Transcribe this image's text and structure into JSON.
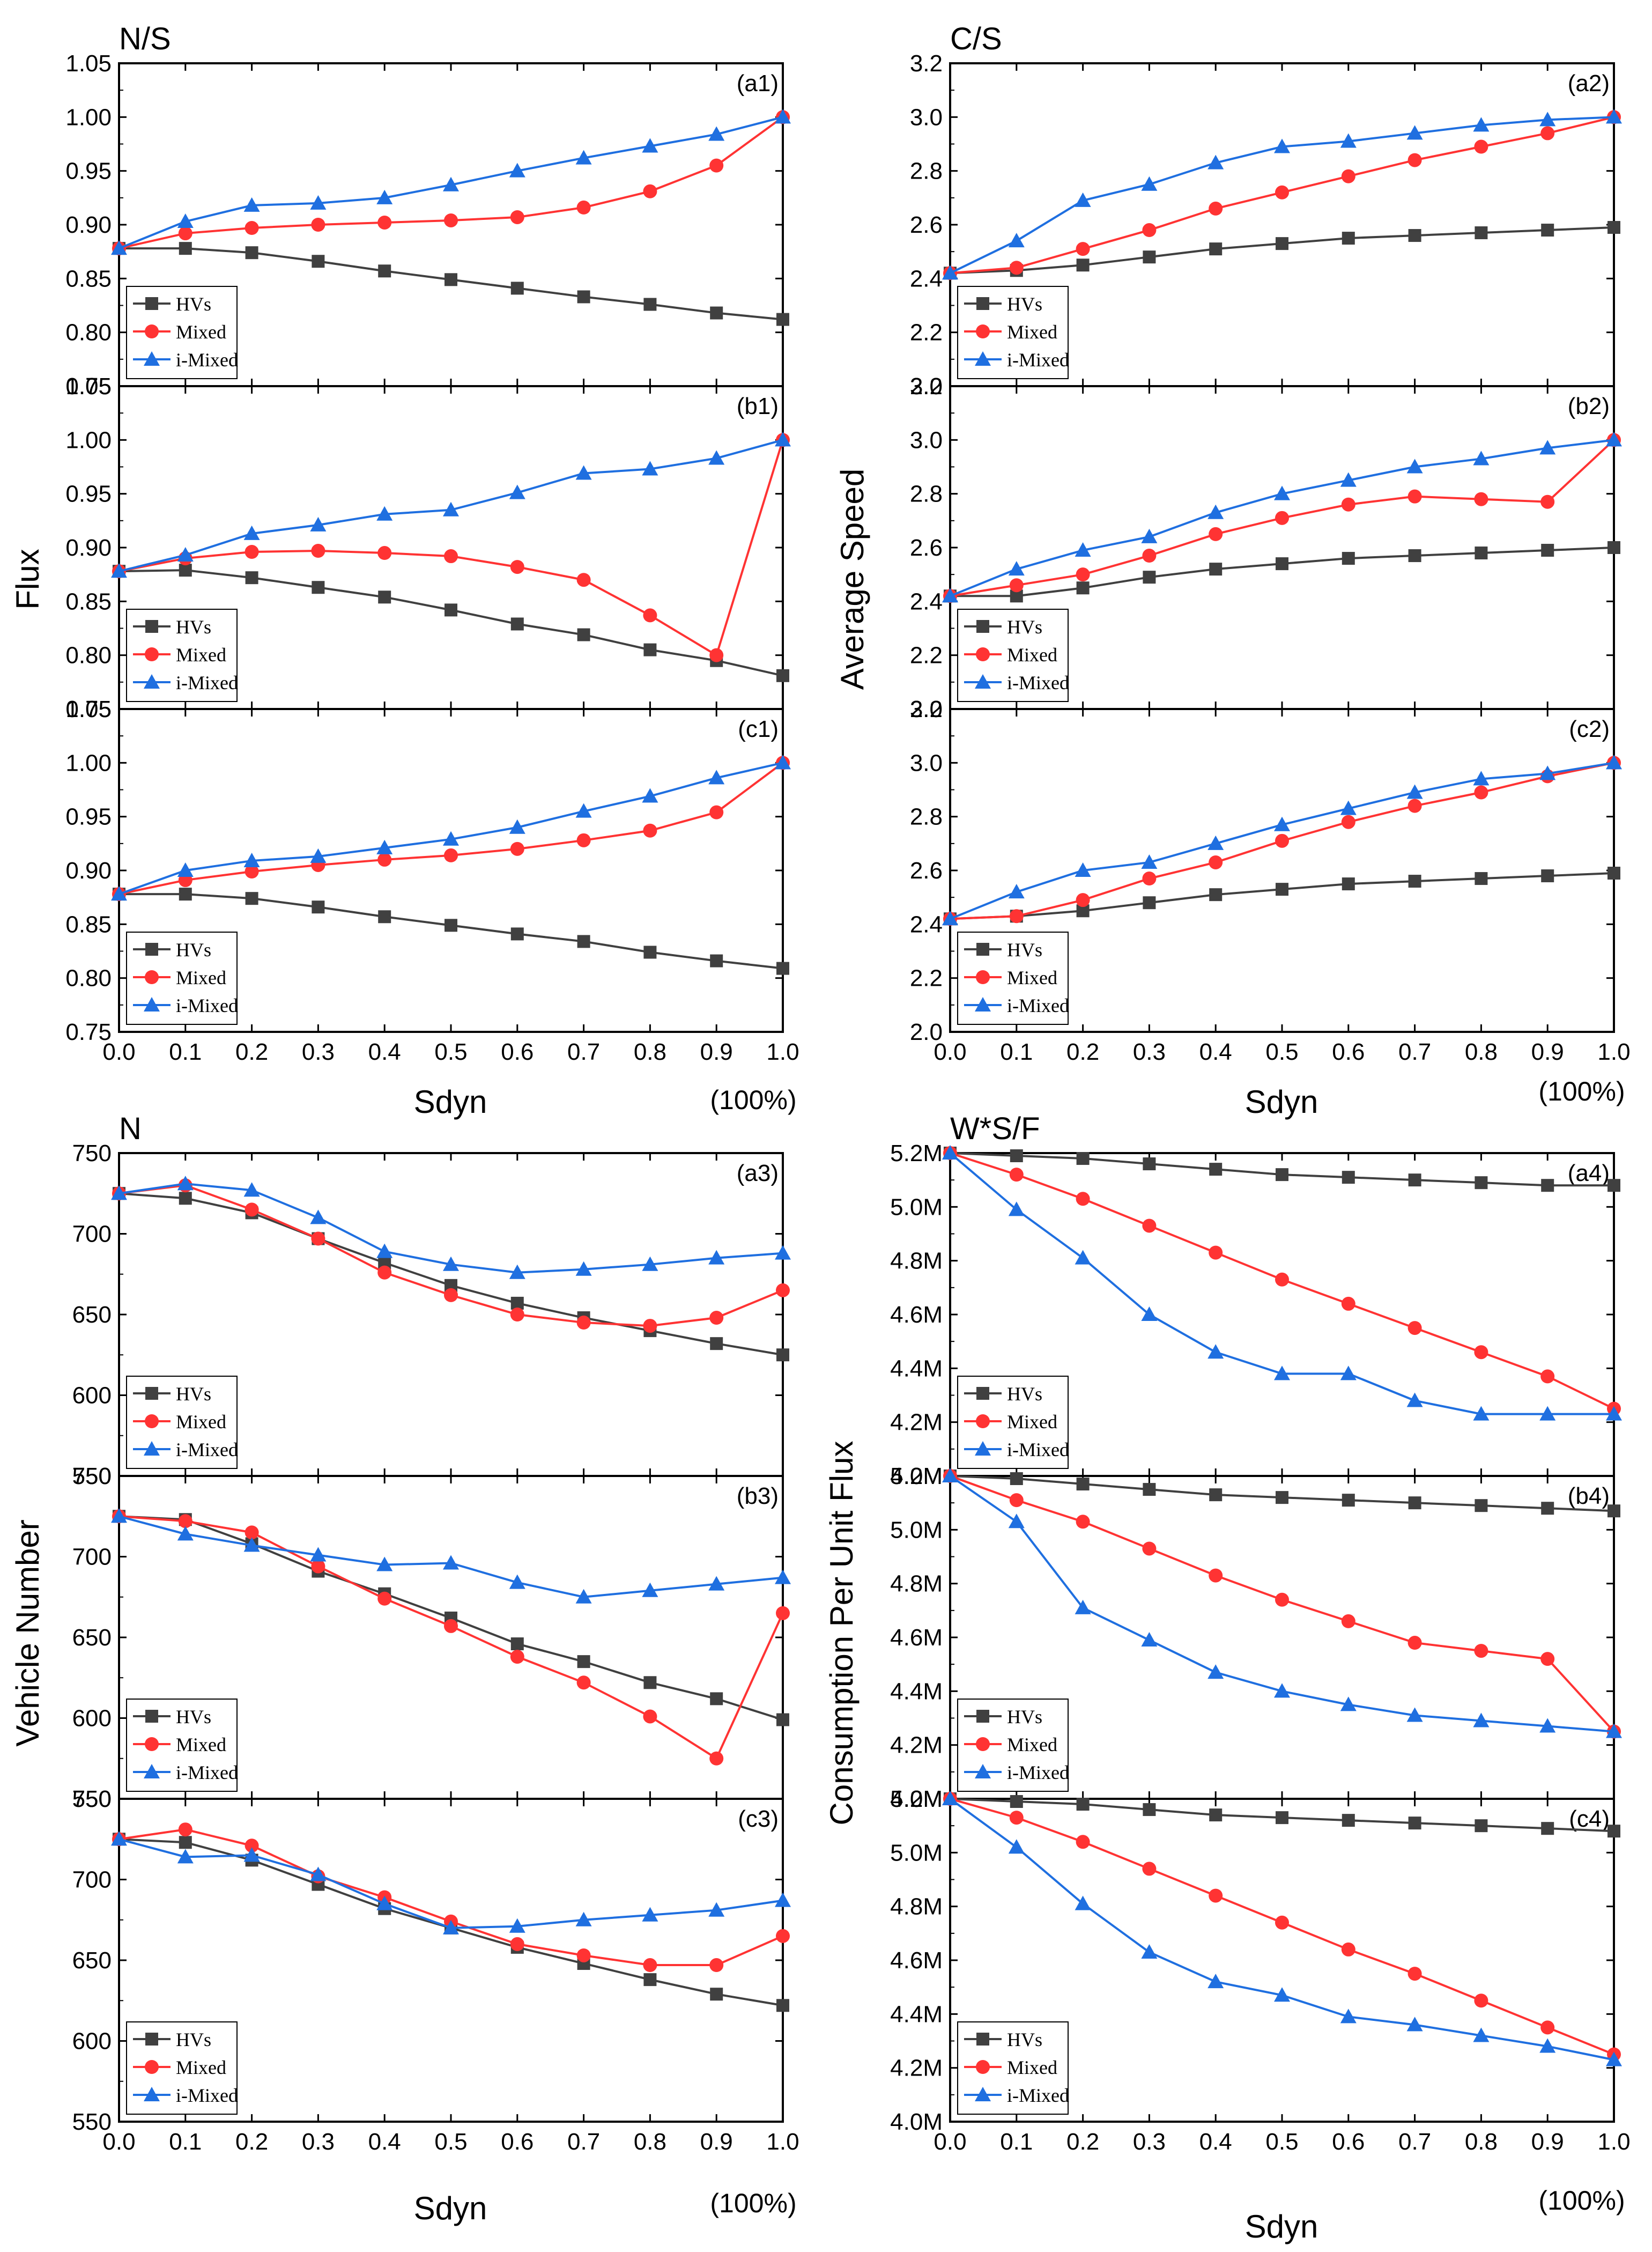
{
  "colors": {
    "HVs": "#404040",
    "Mixed": "#ff3333",
    "i-Mixed": "#1f6fe0"
  },
  "groups": [
    {
      "corner_title": "N/S",
      "ylabel": "Flux",
      "xlabel": "Sdyn",
      "pct_label": "(100%)"
    },
    {
      "corner_title": "C/S",
      "ylabel": "Average Speed",
      "xlabel": "Sdyn",
      "pct_label": "(100%)"
    },
    {
      "corner_title": "N",
      "ylabel": "Vehicle Number",
      "xlabel": "Sdyn",
      "pct_label": ""
    },
    {
      "corner_title": "W*S/F",
      "ylabel": "Consumption Per Unit Flux",
      "xlabel": "Sdyn",
      "pct_label": "(100%)"
    }
  ],
  "bottom_labels": {
    "left": "Sdyn",
    "left_pct": "(100%)"
  },
  "chart_data": [
    {
      "group": 0,
      "label": "(a1)",
      "type": "line",
      "xlabel": "Sdyn",
      "ylabel": "Flux",
      "ylim": [
        0.75,
        1.05
      ],
      "yticks": [
        0.75,
        0.8,
        0.85,
        0.9,
        0.95,
        1.0,
        1.05
      ],
      "ytick_labels": [
        "0.75",
        "0.80",
        "0.85",
        "0.90",
        "0.95",
        "1.00",
        "1.05"
      ],
      "x": [
        0.0,
        0.1,
        0.2,
        0.3,
        0.4,
        0.5,
        0.6,
        0.7,
        0.8,
        0.9,
        1.0
      ],
      "series": [
        {
          "name": "HVs",
          "marker": "square",
          "values": [
            0.878,
            0.878,
            0.874,
            0.866,
            0.857,
            0.849,
            0.841,
            0.833,
            0.826,
            0.818,
            0.812
          ]
        },
        {
          "name": "Mixed",
          "marker": "circle",
          "values": [
            0.878,
            0.892,
            0.897,
            0.9,
            0.902,
            0.904,
            0.907,
            0.916,
            0.931,
            0.955,
            1.0
          ]
        },
        {
          "name": "i-Mixed",
          "marker": "triangle",
          "values": [
            0.878,
            0.903,
            0.918,
            0.92,
            0.925,
            0.937,
            0.95,
            0.962,
            0.973,
            0.984,
            1.0
          ]
        }
      ]
    },
    {
      "group": 0,
      "label": "(b1)",
      "type": "line",
      "xlabel": "Sdyn",
      "ylabel": "Flux",
      "ylim": [
        0.75,
        1.05
      ],
      "yticks": [
        0.75,
        0.8,
        0.85,
        0.9,
        0.95,
        1.0,
        1.05
      ],
      "ytick_labels": [
        "0.75",
        "0.80",
        "0.85",
        "0.90",
        "0.95",
        "1.00",
        "1.05"
      ],
      "x": [
        0.0,
        0.1,
        0.2,
        0.3,
        0.4,
        0.5,
        0.6,
        0.7,
        0.8,
        0.9,
        1.0
      ],
      "series": [
        {
          "name": "HVs",
          "marker": "square",
          "values": [
            0.878,
            0.879,
            0.872,
            0.863,
            0.854,
            0.842,
            0.829,
            0.819,
            0.805,
            0.795,
            0.781
          ]
        },
        {
          "name": "Mixed",
          "marker": "circle",
          "values": [
            0.878,
            0.89,
            0.896,
            0.897,
            0.895,
            0.892,
            0.882,
            0.87,
            0.837,
            0.8,
            1.0
          ]
        },
        {
          "name": "i-Mixed",
          "marker": "triangle",
          "values": [
            0.878,
            0.893,
            0.913,
            0.921,
            0.931,
            0.935,
            0.951,
            0.969,
            0.973,
            0.983,
            1.0
          ]
        }
      ]
    },
    {
      "group": 0,
      "label": "(c1)",
      "type": "line",
      "xlabel": "Sdyn",
      "ylabel": "Flux",
      "ylim": [
        0.75,
        1.05
      ],
      "yticks": [
        0.75,
        0.8,
        0.85,
        0.9,
        0.95,
        1.0,
        1.05
      ],
      "ytick_labels": [
        "0.75",
        "0.80",
        "0.85",
        "0.90",
        "0.95",
        "1.00",
        "1.05"
      ],
      "x": [
        0.0,
        0.1,
        0.2,
        0.3,
        0.4,
        0.5,
        0.6,
        0.7,
        0.8,
        0.9,
        1.0
      ],
      "series": [
        {
          "name": "HVs",
          "marker": "square",
          "values": [
            0.878,
            0.878,
            0.874,
            0.866,
            0.857,
            0.849,
            0.841,
            0.834,
            0.824,
            0.816,
            0.809
          ]
        },
        {
          "name": "Mixed",
          "marker": "circle",
          "values": [
            0.878,
            0.891,
            0.899,
            0.905,
            0.91,
            0.914,
            0.92,
            0.928,
            0.937,
            0.954,
            1.0
          ]
        },
        {
          "name": "i-Mixed",
          "marker": "triangle",
          "values": [
            0.878,
            0.9,
            0.909,
            0.913,
            0.921,
            0.929,
            0.94,
            0.955,
            0.969,
            0.986,
            1.0
          ]
        }
      ]
    },
    {
      "group": 1,
      "label": "(a2)",
      "type": "line",
      "xlabel": "Sdyn",
      "ylabel": "Average Speed",
      "ylim": [
        2.0,
        3.2
      ],
      "yticks": [
        2.0,
        2.2,
        2.4,
        2.6,
        2.8,
        3.0,
        3.2
      ],
      "ytick_labels": [
        "2.0",
        "2.2",
        "2.4",
        "2.6",
        "2.8",
        "3.0",
        "3.2"
      ],
      "x": [
        0.0,
        0.1,
        0.2,
        0.3,
        0.4,
        0.5,
        0.6,
        0.7,
        0.8,
        0.9,
        1.0
      ],
      "series": [
        {
          "name": "HVs",
          "marker": "square",
          "values": [
            2.42,
            2.43,
            2.45,
            2.48,
            2.51,
            2.53,
            2.55,
            2.56,
            2.57,
            2.58,
            2.59
          ]
        },
        {
          "name": "Mixed",
          "marker": "circle",
          "values": [
            2.42,
            2.44,
            2.51,
            2.58,
            2.66,
            2.72,
            2.78,
            2.84,
            2.89,
            2.94,
            3.0
          ]
        },
        {
          "name": "i-Mixed",
          "marker": "triangle",
          "values": [
            2.42,
            2.54,
            2.69,
            2.75,
            2.83,
            2.89,
            2.91,
            2.94,
            2.97,
            2.99,
            3.0
          ]
        }
      ]
    },
    {
      "group": 1,
      "label": "(b2)",
      "type": "line",
      "xlabel": "Sdyn",
      "ylabel": "Average Speed",
      "ylim": [
        2.0,
        3.2
      ],
      "yticks": [
        2.0,
        2.2,
        2.4,
        2.6,
        2.8,
        3.0,
        3.2
      ],
      "ytick_labels": [
        "2.0",
        "2.2",
        "2.4",
        "2.6",
        "2.8",
        "3.0",
        "3.2"
      ],
      "x": [
        0.0,
        0.1,
        0.2,
        0.3,
        0.4,
        0.5,
        0.6,
        0.7,
        0.8,
        0.9,
        1.0
      ],
      "series": [
        {
          "name": "HVs",
          "marker": "square",
          "values": [
            2.42,
            2.42,
            2.45,
            2.49,
            2.52,
            2.54,
            2.56,
            2.57,
            2.58,
            2.59,
            2.6
          ]
        },
        {
          "name": "Mixed",
          "marker": "circle",
          "values": [
            2.42,
            2.46,
            2.5,
            2.57,
            2.65,
            2.71,
            2.76,
            2.79,
            2.78,
            2.77,
            3.0
          ]
        },
        {
          "name": "i-Mixed",
          "marker": "triangle",
          "values": [
            2.42,
            2.52,
            2.59,
            2.64,
            2.73,
            2.8,
            2.85,
            2.9,
            2.93,
            2.97,
            3.0
          ]
        }
      ]
    },
    {
      "group": 1,
      "label": "(c2)",
      "type": "line",
      "xlabel": "Sdyn",
      "ylabel": "Average Speed",
      "ylim": [
        2.0,
        3.2
      ],
      "yticks": [
        2.0,
        2.2,
        2.4,
        2.6,
        2.8,
        3.0,
        3.2
      ],
      "ytick_labels": [
        "2.0",
        "2.2",
        "2.4",
        "2.6",
        "2.8",
        "3.0",
        "3.2"
      ],
      "x": [
        0.0,
        0.1,
        0.2,
        0.3,
        0.4,
        0.5,
        0.6,
        0.7,
        0.8,
        0.9,
        1.0
      ],
      "series": [
        {
          "name": "HVs",
          "marker": "square",
          "values": [
            2.42,
            2.43,
            2.45,
            2.48,
            2.51,
            2.53,
            2.55,
            2.56,
            2.57,
            2.58,
            2.59
          ]
        },
        {
          "name": "Mixed",
          "marker": "circle",
          "values": [
            2.42,
            2.43,
            2.49,
            2.57,
            2.63,
            2.71,
            2.78,
            2.84,
            2.89,
            2.95,
            3.0
          ]
        },
        {
          "name": "i-Mixed",
          "marker": "triangle",
          "values": [
            2.42,
            2.52,
            2.6,
            2.63,
            2.7,
            2.77,
            2.83,
            2.89,
            2.94,
            2.96,
            3.0
          ]
        }
      ]
    },
    {
      "group": 2,
      "label": "(a3)",
      "type": "line",
      "xlabel": "Sdyn",
      "ylabel": "Vehicle Number",
      "ylim": [
        550,
        750
      ],
      "yticks": [
        550,
        600,
        650,
        700,
        750
      ],
      "ytick_labels": [
        "550",
        "600",
        "650",
        "700",
        "750"
      ],
      "x": [
        0.0,
        0.1,
        0.2,
        0.3,
        0.4,
        0.5,
        0.6,
        0.7,
        0.8,
        0.9,
        1.0
      ],
      "series": [
        {
          "name": "HVs",
          "marker": "square",
          "values": [
            725,
            722,
            713,
            697,
            682,
            668,
            657,
            648,
            640,
            632,
            625
          ]
        },
        {
          "name": "Mixed",
          "marker": "circle",
          "values": [
            725,
            730,
            715,
            697,
            676,
            662,
            650,
            645,
            643,
            648,
            665
          ]
        },
        {
          "name": "i-Mixed",
          "marker": "triangle",
          "values": [
            725,
            731,
            727,
            710,
            689,
            681,
            676,
            678,
            681,
            685,
            688
          ]
        }
      ]
    },
    {
      "group": 2,
      "label": "(b3)",
      "type": "line",
      "xlabel": "Sdyn",
      "ylabel": "Vehicle Number",
      "ylim": [
        550,
        750
      ],
      "yticks": [
        550,
        600,
        650,
        700,
        750
      ],
      "ytick_labels": [
        "550",
        "600",
        "650",
        "700",
        "750"
      ],
      "x": [
        0.0,
        0.1,
        0.2,
        0.3,
        0.4,
        0.5,
        0.6,
        0.7,
        0.8,
        0.9,
        1.0
      ],
      "series": [
        {
          "name": "HVs",
          "marker": "square",
          "values": [
            725,
            723,
            708,
            691,
            677,
            662,
            646,
            635,
            622,
            612,
            599
          ]
        },
        {
          "name": "Mixed",
          "marker": "circle",
          "values": [
            725,
            722,
            715,
            694,
            674,
            657,
            638,
            622,
            601,
            575,
            665
          ]
        },
        {
          "name": "i-Mixed",
          "marker": "triangle",
          "values": [
            725,
            714,
            707,
            701,
            695,
            696,
            684,
            675,
            679,
            683,
            687
          ]
        }
      ]
    },
    {
      "group": 2,
      "label": "(c3)",
      "type": "line",
      "xlabel": "Sdyn",
      "ylabel": "Vehicle Number",
      "ylim": [
        550,
        750
      ],
      "yticks": [
        550,
        600,
        650,
        700,
        750
      ],
      "ytick_labels": [
        "550",
        "600",
        "650",
        "700",
        "750"
      ],
      "x": [
        0.0,
        0.1,
        0.2,
        0.3,
        0.4,
        0.5,
        0.6,
        0.7,
        0.8,
        0.9,
        1.0
      ],
      "series": [
        {
          "name": "HVs",
          "marker": "square",
          "values": [
            725,
            723,
            712,
            697,
            682,
            670,
            658,
            648,
            638,
            629,
            622
          ]
        },
        {
          "name": "Mixed",
          "marker": "circle",
          "values": [
            725,
            731,
            721,
            702,
            689,
            674,
            660,
            653,
            647,
            647,
            665
          ]
        },
        {
          "name": "i-Mixed",
          "marker": "triangle",
          "values": [
            725,
            714,
            715,
            703,
            685,
            670,
            671,
            675,
            678,
            681,
            687
          ]
        }
      ]
    },
    {
      "group": 3,
      "label": "(a4)",
      "type": "line",
      "xlabel": "Sdyn",
      "ylabel": "Consumption Per Unit Flux",
      "ylim": [
        4.0,
        5.2
      ],
      "yticks": [
        4.0,
        4.2,
        4.4,
        4.6,
        4.8,
        5.0,
        5.2
      ],
      "ytick_labels": [
        "4.0M",
        "4.2M",
        "4.4M",
        "4.6M",
        "4.8M",
        "5.0M",
        "5.2M"
      ],
      "x": [
        0.0,
        0.1,
        0.2,
        0.3,
        0.4,
        0.5,
        0.6,
        0.7,
        0.8,
        0.9,
        1.0
      ],
      "series": [
        {
          "name": "HVs",
          "marker": "square",
          "values": [
            5.2,
            5.19,
            5.18,
            5.16,
            5.14,
            5.12,
            5.11,
            5.1,
            5.09,
            5.08,
            5.08
          ]
        },
        {
          "name": "Mixed",
          "marker": "circle",
          "values": [
            5.2,
            5.12,
            5.03,
            4.93,
            4.83,
            4.73,
            4.64,
            4.55,
            4.46,
            4.37,
            4.25
          ]
        },
        {
          "name": "i-Mixed",
          "marker": "triangle",
          "values": [
            5.2,
            4.99,
            4.81,
            4.6,
            4.46,
            4.38,
            4.38,
            4.28,
            4.23,
            4.23,
            4.23
          ]
        }
      ]
    },
    {
      "group": 3,
      "label": "(b4)",
      "type": "line",
      "xlabel": "Sdyn",
      "ylabel": "Consumption Per Unit Flux",
      "ylim": [
        4.0,
        5.2
      ],
      "yticks": [
        4.0,
        4.2,
        4.4,
        4.6,
        4.8,
        5.0,
        5.2
      ],
      "ytick_labels": [
        "4.0M",
        "4.2M",
        "4.4M",
        "4.6M",
        "4.8M",
        "5.0M",
        "5.2M"
      ],
      "x": [
        0.0,
        0.1,
        0.2,
        0.3,
        0.4,
        0.5,
        0.6,
        0.7,
        0.8,
        0.9,
        1.0
      ],
      "series": [
        {
          "name": "HVs",
          "marker": "square",
          "values": [
            5.2,
            5.19,
            5.17,
            5.15,
            5.13,
            5.12,
            5.11,
            5.1,
            5.09,
            5.08,
            5.07
          ]
        },
        {
          "name": "Mixed",
          "marker": "circle",
          "values": [
            5.2,
            5.11,
            5.03,
            4.93,
            4.83,
            4.74,
            4.66,
            4.58,
            4.55,
            4.52,
            4.25
          ]
        },
        {
          "name": "i-Mixed",
          "marker": "triangle",
          "values": [
            5.2,
            5.03,
            4.71,
            4.59,
            4.47,
            4.4,
            4.35,
            4.31,
            4.29,
            4.27,
            4.25
          ]
        }
      ]
    },
    {
      "group": 3,
      "label": "(c4)",
      "type": "line",
      "xlabel": "Sdyn",
      "ylabel": "Consumption Per Unit Flux",
      "ylim": [
        4.0,
        5.2
      ],
      "yticks": [
        4.0,
        4.2,
        4.4,
        4.6,
        4.8,
        5.0,
        5.2
      ],
      "ytick_labels": [
        "4.0M",
        "4.2M",
        "4.4M",
        "4.6M",
        "4.8M",
        "5.0M",
        "5.2M"
      ],
      "x": [
        0.0,
        0.1,
        0.2,
        0.3,
        0.4,
        0.5,
        0.6,
        0.7,
        0.8,
        0.9,
        1.0
      ],
      "series": [
        {
          "name": "HVs",
          "marker": "square",
          "values": [
            5.2,
            5.19,
            5.18,
            5.16,
            5.14,
            5.13,
            5.12,
            5.11,
            5.1,
            5.09,
            5.08
          ]
        },
        {
          "name": "Mixed",
          "marker": "circle",
          "values": [
            5.2,
            5.13,
            5.04,
            4.94,
            4.84,
            4.74,
            4.64,
            4.55,
            4.45,
            4.35,
            4.25
          ]
        },
        {
          "name": "i-Mixed",
          "marker": "triangle",
          "values": [
            5.2,
            5.02,
            4.81,
            4.63,
            4.52,
            4.47,
            4.39,
            4.36,
            4.32,
            4.28,
            4.23
          ]
        }
      ]
    }
  ],
  "xtick_labels": [
    "0.0",
    "0.1",
    "0.2",
    "0.3",
    "0.4",
    "0.5",
    "0.6",
    "0.7",
    "0.8",
    "0.9",
    "1.0"
  ],
  "legend_labels": [
    "HVs",
    "Mixed",
    "i-Mixed"
  ]
}
